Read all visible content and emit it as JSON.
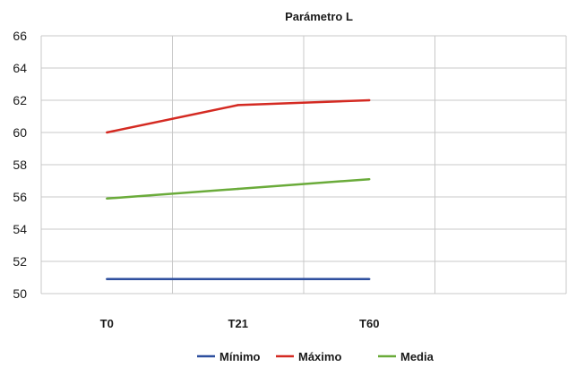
{
  "chart_data": {
    "type": "line",
    "title": "Parámetro L",
    "categories": [
      "T0",
      "T21",
      "T60"
    ],
    "ylim": [
      50,
      66
    ],
    "yticks": [
      50,
      52,
      54,
      56,
      58,
      60,
      62,
      64,
      66
    ],
    "grid": true,
    "legend_position": "bottom",
    "series": [
      {
        "name": "Mínimo",
        "color": "#2e4f9e",
        "values": [
          50.9,
          50.9,
          50.9
        ]
      },
      {
        "name": "Máximo",
        "color": "#d42a22",
        "values": [
          60.0,
          61.7,
          62.0
        ]
      },
      {
        "name": "Media",
        "color": "#6aab3a",
        "values": [
          55.9,
          56.5,
          57.1
        ]
      }
    ]
  }
}
